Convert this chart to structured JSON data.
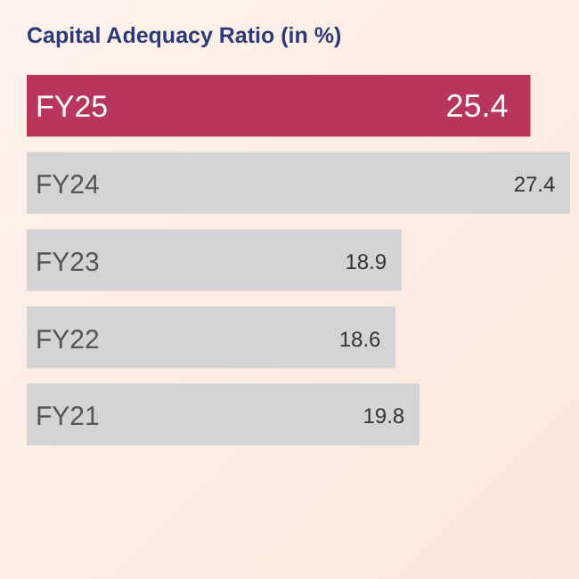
{
  "chart_data": {
    "type": "bar",
    "orientation": "horizontal",
    "title": "Capital Adequacy Ratio (in %)",
    "categories": [
      "FY25",
      "FY24",
      "FY23",
      "FY22",
      "FY21"
    ],
    "values": [
      25.4,
      27.4,
      18.9,
      18.6,
      19.8
    ],
    "colors": [
      "#b8365a",
      "#d4d4d6",
      "#d4d4d6",
      "#d4d4d6",
      "#d4d4d6"
    ],
    "data_labels": true
  }
}
